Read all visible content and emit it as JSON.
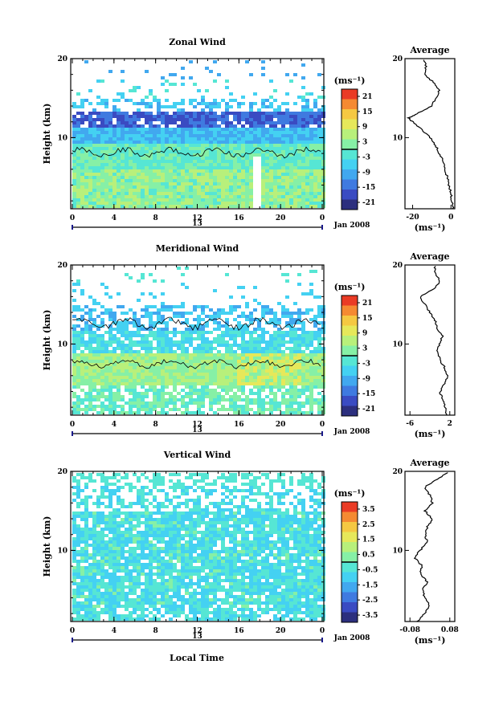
{
  "figure": {
    "bottom_xlabel": "Local Time",
    "avg_xlabel": "(ms⁻¹)",
    "cb_label": "(ms⁻¹)",
    "date_label": "Jan 2008",
    "day_label": "13",
    "panel_ylabel": "Height (km)"
  },
  "chart_data": [
    {
      "type": "heatmap",
      "title": "Zonal Wind",
      "ylabel": "Height (km)",
      "x_ticks": [
        "0",
        "4",
        "8",
        "12",
        "16",
        "20",
        "0"
      ],
      "y_ticks": [
        "20",
        "10"
      ],
      "ylim": [
        1,
        20
      ],
      "xlim": [
        0,
        24
      ],
      "colorbar": {
        "unit": "(ms⁻¹)",
        "ticks": [
          "21",
          "15",
          "9",
          "3",
          "-3",
          "-9",
          "-15",
          "-21"
        ],
        "range": [
          -24,
          24
        ]
      },
      "data_notes": "Westerly ~-20 to -24 m/s band near 12-13 km; near-zero to +3 m/s below 10 km",
      "average_profile": {
        "title": "Average",
        "x_ticks": [
          "-20",
          "0"
        ],
        "y_ticks": [
          "20",
          "10"
        ],
        "xlim": [
          -24,
          2
        ],
        "heights_km": [
          1,
          2,
          3,
          4,
          5,
          6,
          7,
          8,
          9,
          10,
          11,
          12,
          12.5,
          13,
          14,
          15,
          16,
          17,
          18,
          19,
          20
        ],
        "values": [
          1,
          0.5,
          0,
          -1,
          -2,
          -3,
          -4,
          -6,
          -8,
          -11,
          -15,
          -20,
          -22,
          -18,
          -10,
          -8,
          -6,
          -9,
          -14,
          -13,
          -14
        ]
      }
    },
    {
      "type": "heatmap",
      "title": "Meridional Wind",
      "ylabel": "Height (km)",
      "x_ticks": [
        "0",
        "4",
        "8",
        "12",
        "16",
        "20",
        "0"
      ],
      "y_ticks": [
        "20",
        "10"
      ],
      "ylim": [
        1,
        20
      ],
      "xlim": [
        0,
        24
      ],
      "colorbar": {
        "unit": "(ms⁻¹)",
        "ticks": [
          "21",
          "15",
          "9",
          "3",
          "-3",
          "-9",
          "-15",
          "-21"
        ],
        "range": [
          -24,
          24
        ]
      },
      "average_profile": {
        "title": "Average",
        "x_ticks": [
          "-6",
          "2"
        ],
        "y_ticks": [
          "20",
          "10"
        ],
        "xlim": [
          -7,
          3
        ],
        "heights_km": [
          1,
          2,
          3,
          4,
          5,
          6,
          7,
          8,
          9,
          10,
          11,
          12,
          13,
          14,
          15,
          16,
          17,
          18,
          19,
          20
        ],
        "values": [
          1.5,
          1,
          0.5,
          0,
          1,
          1.5,
          1,
          0,
          -0.5,
          -0.2,
          0.5,
          -0.5,
          -1,
          -2,
          -3,
          -4,
          -1,
          0,
          -1,
          -1
        ]
      }
    },
    {
      "type": "heatmap",
      "title": "Vertical Wind",
      "ylabel": "Height (km)",
      "xlabel": "Local Time",
      "x_ticks": [
        "0",
        "4",
        "8",
        "12",
        "16",
        "20",
        "0"
      ],
      "y_ticks": [
        "20",
        "10"
      ],
      "ylim": [
        1,
        20
      ],
      "xlim": [
        0,
        24
      ],
      "colorbar": {
        "unit": "(ms⁻¹)",
        "ticks": [
          "3.5",
          "2.5",
          "1.5",
          "0.5",
          "-0.5",
          "-1.5",
          "-2.5",
          "-3.5"
        ],
        "range": [
          -4,
          4
        ]
      },
      "average_profile": {
        "title": "Average",
        "x_ticks": [
          "-0.08",
          "0.08"
        ],
        "y_ticks": [
          "20",
          "10"
        ],
        "xlim": [
          -0.1,
          0.1
        ],
        "heights_km": [
          1,
          2,
          3,
          4,
          5,
          6,
          7,
          8,
          9,
          10,
          11,
          12,
          13,
          14,
          15,
          16,
          17,
          18,
          19,
          20
        ],
        "values": [
          -0.05,
          -0.02,
          0,
          -0.02,
          -0.03,
          -0.01,
          -0.04,
          -0.03,
          -0.06,
          -0.04,
          -0.01,
          -0.02,
          -0.01,
          0.01,
          -0.02,
          0.01,
          0.0,
          -0.02,
          0.03,
          0.08
        ]
      }
    }
  ],
  "colors": {
    "scale": [
      "#2c2f7e",
      "#3a4bc2",
      "#3f7ae0",
      "#41a8ef",
      "#44d1f2",
      "#56e6d4",
      "#86f0a6",
      "#b8f07b",
      "#e6e85a",
      "#f5c842",
      "#f58a32",
      "#ea3b25"
    ]
  }
}
